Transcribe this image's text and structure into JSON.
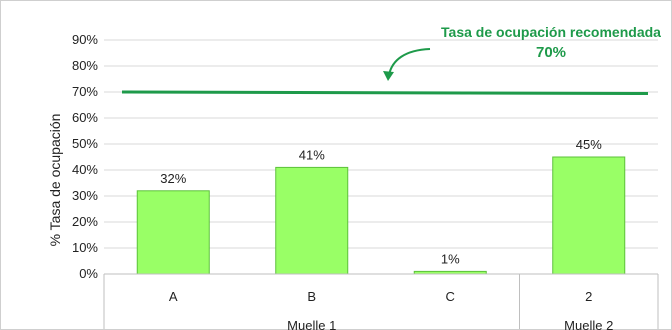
{
  "chart_data": {
    "type": "bar",
    "title": "",
    "ylabel": "% Tasa de ocupación",
    "xlabel": "",
    "categories": [
      "A",
      "B",
      "C",
      "2"
    ],
    "category_groups": [
      {
        "label": "Muelle 1",
        "categories": [
          "A",
          "B",
          "C"
        ]
      },
      {
        "label": "Muelle 2",
        "categories": [
          "2"
        ]
      }
    ],
    "values": [
      32,
      41,
      1,
      45
    ],
    "data_labels": [
      "32%",
      "41%",
      "1%",
      "45%"
    ],
    "ylim": [
      0,
      90
    ],
    "yticks": [
      0,
      10,
      20,
      30,
      40,
      50,
      60,
      70,
      80,
      90
    ],
    "ytick_labels": [
      "0%",
      "10%",
      "20%",
      "30%",
      "40%",
      "50%",
      "60%",
      "70%",
      "80%",
      "90%"
    ],
    "grid": true,
    "bar_color": "#99ff66",
    "bar_edge_color": "#5cc13a",
    "reference_line": {
      "value": 70,
      "color": "#1e9a4a",
      "annotation_line1": "Tasa de ocupación recomendada",
      "annotation_line2": "70%"
    }
  }
}
